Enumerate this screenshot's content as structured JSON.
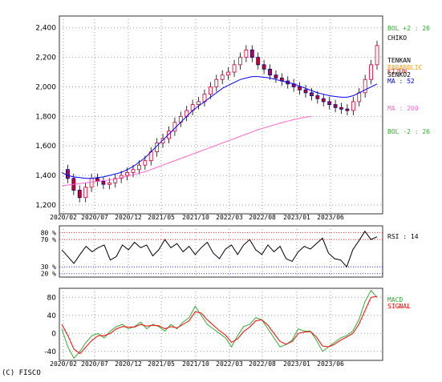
{
  "copyright": "(C) FISCO",
  "chart_data": [
    {
      "panel": "price",
      "type": "candlestick",
      "x_ticks": [
        "2020/02",
        "2020/07",
        "2020/12",
        "2021/05",
        "2021/10",
        "2022/03",
        "2022/08",
        "2023/01",
        "2023/06"
      ],
      "y_ticks": [
        "2,400",
        "2,200",
        "2,000",
        "1,800",
        "1,600",
        "1,400",
        "1,200"
      ],
      "y_tick_values": [
        2400,
        2200,
        2000,
        1800,
        1600,
        1400,
        1200
      ],
      "ylim": [
        1140,
        2480
      ],
      "grid": true,
      "legend": [
        {
          "label": "BOL +2 : 26",
          "color": "#33aa33"
        },
        {
          "label": "CHIKO",
          "color": "#000000"
        },
        {
          "label": "TENKAN",
          "color": "#000000"
        },
        {
          "label": "PARABOLIC",
          "color": "#ff9900"
        },
        {
          "label": "KIJUN",
          "color": "#cc3333"
        },
        {
          "label": "SENKO2",
          "color": "#000000"
        },
        {
          "label": "MA : 52",
          "color": "#0000ff"
        },
        {
          "label": "MA : 200",
          "color": "#ff66cc"
        },
        {
          "label": "BOL -2 : 26",
          "color": "#33aa33"
        }
      ],
      "close_series": [
        1440,
        1380,
        1300,
        1250,
        1320,
        1380,
        1360,
        1340,
        1350,
        1380,
        1400,
        1420,
        1440,
        1470,
        1500,
        1560,
        1620,
        1650,
        1700,
        1760,
        1800,
        1840,
        1880,
        1900,
        1950,
        2000,
        2050,
        2080,
        2100,
        2150,
        2200,
        2250,
        2200,
        2150,
        2120,
        2080,
        2060,
        2040,
        2020,
        2000,
        1980,
        1960,
        1940,
        1920,
        1900,
        1880,
        1860,
        1850,
        1840,
        1900,
        1960,
        2050,
        2150,
        2280
      ],
      "ma52": [
        1420,
        1400,
        1390,
        1385,
        1380,
        1380,
        1385,
        1390,
        1400,
        1410,
        1420,
        1440,
        1460,
        1490,
        1520,
        1560,
        1600,
        1640,
        1680,
        1720,
        1760,
        1800,
        1840,
        1870,
        1900,
        1930,
        1960,
        1990,
        2010,
        2030,
        2050,
        2060,
        2070,
        2070,
        2065,
        2060,
        2050,
        2040,
        2030,
        2020,
        2005,
        1990,
        1975,
        1960,
        1950,
        1940,
        1935,
        1930,
        1930,
        1940,
        1960,
        1980,
        2000,
        2020
      ],
      "ma200": [
        1330,
        1335,
        1340,
        1345,
        1350,
        1355,
        1360,
        1365,
        1370,
        1375,
        1385,
        1395,
        1405,
        1415,
        1425,
        1440,
        1455,
        1470,
        1485,
        1500,
        1515,
        1530,
        1545,
        1560,
        1575,
        1590,
        1605,
        1620,
        1635,
        1650,
        1665,
        1680,
        1695,
        1710,
        1722,
        1734,
        1746,
        1758,
        1768,
        1778,
        1786,
        1794,
        1800
      ]
    },
    {
      "panel": "rsi",
      "type": "line",
      "y_ticks": [
        "80 %",
        "70 %",
        "30 %",
        "20 %"
      ],
      "y_tick_values": [
        80,
        70,
        30,
        20
      ],
      "ylim": [
        15,
        90
      ],
      "legend": [
        {
          "label": "RSI : 14",
          "color": "#000000"
        }
      ],
      "rsi": [
        55,
        45,
        35,
        48,
        60,
        52,
        58,
        62,
        40,
        45,
        62,
        55,
        66,
        58,
        62,
        46,
        55,
        70,
        58,
        64,
        52,
        60,
        48,
        58,
        66,
        50,
        42,
        56,
        62,
        48,
        62,
        70,
        55,
        48,
        62,
        52,
        60,
        42,
        38,
        52,
        60,
        56,
        64,
        72,
        50,
        42,
        40,
        30,
        55,
        68,
        82,
        70,
        74
      ]
    },
    {
      "panel": "macd",
      "type": "line",
      "y_ticks": [
        "80",
        "40",
        "0",
        "-40"
      ],
      "y_tick_values": [
        80,
        40,
        0,
        -40
      ],
      "ylim": [
        -60,
        100
      ],
      "legend": [
        {
          "label": "MACD",
          "color": "#33aa33"
        },
        {
          "label": "SIGNAL",
          "color": "#ff0000"
        }
      ],
      "macd": [
        10,
        -30,
        -55,
        -40,
        -20,
        -5,
        0,
        -10,
        5,
        15,
        20,
        10,
        15,
        25,
        10,
        20,
        15,
        5,
        20,
        10,
        25,
        35,
        60,
        40,
        20,
        10,
        0,
        -10,
        -30,
        -5,
        15,
        20,
        35,
        30,
        10,
        -10,
        -30,
        -25,
        -15,
        10,
        5,
        5,
        -15,
        -40,
        -30,
        -20,
        -10,
        -5,
        5,
        30,
        70,
        95,
        80
      ],
      "signal": [
        20,
        -5,
        -35,
        -45,
        -30,
        -15,
        -5,
        -5,
        0,
        10,
        15,
        14,
        14,
        20,
        16,
        18,
        17,
        10,
        15,
        12,
        20,
        28,
        48,
        45,
        30,
        18,
        6,
        -4,
        -20,
        -12,
        4,
        14,
        28,
        30,
        18,
        0,
        -18,
        -24,
        -18,
        0,
        3,
        4,
        -8,
        -28,
        -30,
        -24,
        -15,
        -8,
        0,
        20,
        50,
        80,
        82
      ]
    }
  ]
}
